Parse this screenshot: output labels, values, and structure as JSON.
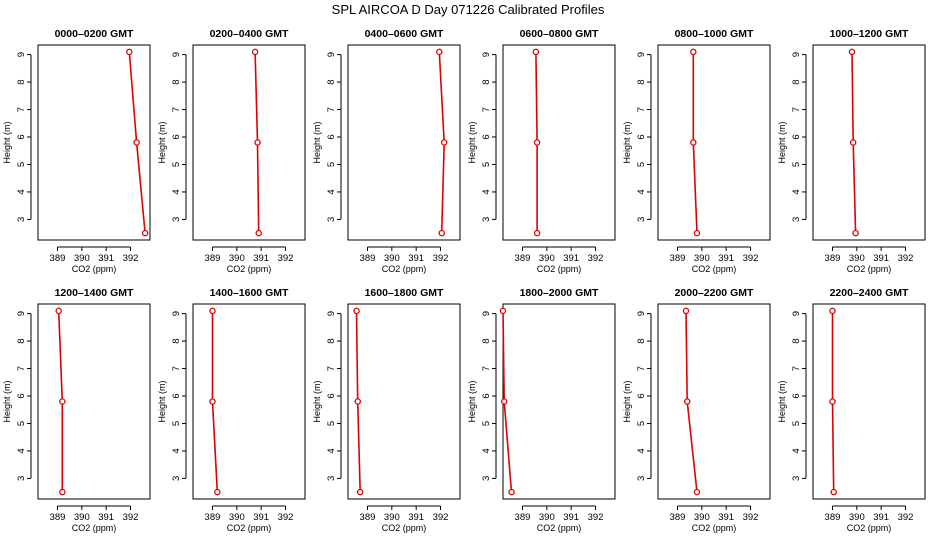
{
  "figure": {
    "title": "SPL AIRCOA D  Day 071226  Calibrated Profiles",
    "colors": {
      "series": "#dd0000",
      "axes": "#000000",
      "background": "#ffffff"
    }
  },
  "chart_data": [
    {
      "type": "line",
      "title": "0000–0200 GMT",
      "xlabel": "CO2 (ppm)",
      "ylabel": "Height (m)",
      "xlim": [
        388.2,
        392.8
      ],
      "ylim": [
        2.25,
        9.35
      ],
      "xticks": [
        389,
        390,
        391,
        392
      ],
      "yticks": [
        3,
        4,
        5,
        6,
        7,
        8,
        9
      ],
      "x": [
        391.95,
        392.25,
        392.6
      ],
      "y": [
        9.1,
        5.8,
        2.5
      ],
      "marker": "open-circle",
      "grid": false
    },
    {
      "type": "line",
      "title": "0200–0400 GMT",
      "xlabel": "CO2 (ppm)",
      "ylabel": "Height (m)",
      "xlim": [
        388.2,
        392.8
      ],
      "ylim": [
        2.25,
        9.35
      ],
      "xticks": [
        389,
        390,
        391,
        392
      ],
      "yticks": [
        3,
        4,
        5,
        6,
        7,
        8,
        9
      ],
      "x": [
        390.75,
        390.85,
        390.9
      ],
      "y": [
        9.1,
        5.8,
        2.5
      ],
      "marker": "open-circle",
      "grid": false
    },
    {
      "type": "line",
      "title": "0400–0600 GMT",
      "xlabel": "CO2 (ppm)",
      "ylabel": "Height (m)",
      "xlim": [
        388.2,
        392.8
      ],
      "ylim": [
        2.25,
        9.35
      ],
      "xticks": [
        389,
        390,
        391,
        392
      ],
      "yticks": [
        3,
        4,
        5,
        6,
        7,
        8,
        9
      ],
      "x": [
        391.95,
        392.15,
        392.05
      ],
      "y": [
        9.1,
        5.8,
        2.5
      ],
      "marker": "open-circle",
      "grid": false
    },
    {
      "type": "line",
      "title": "0600–0800 GMT",
      "xlabel": "CO2 (ppm)",
      "ylabel": "Height (m)",
      "xlim": [
        388.2,
        392.8
      ],
      "ylim": [
        2.25,
        9.35
      ],
      "xticks": [
        389,
        390,
        391,
        392
      ],
      "yticks": [
        3,
        4,
        5,
        6,
        7,
        8,
        9
      ],
      "x": [
        389.55,
        389.6,
        389.6
      ],
      "y": [
        9.1,
        5.8,
        2.5
      ],
      "marker": "open-circle",
      "grid": false
    },
    {
      "type": "line",
      "title": "0800–1000 GMT",
      "xlabel": "CO2 (ppm)",
      "ylabel": "Height (m)",
      "xlim": [
        388.2,
        392.8
      ],
      "ylim": [
        2.25,
        9.35
      ],
      "xticks": [
        389,
        390,
        391,
        392
      ],
      "yticks": [
        3,
        4,
        5,
        6,
        7,
        8,
        9
      ],
      "x": [
        389.65,
        389.65,
        389.8
      ],
      "y": [
        9.1,
        5.8,
        2.5
      ],
      "marker": "open-circle",
      "grid": false
    },
    {
      "type": "line",
      "title": "1000–1200 GMT",
      "xlabel": "CO2 (ppm)",
      "ylabel": "Height (m)",
      "xlim": [
        388.2,
        392.8
      ],
      "ylim": [
        2.25,
        9.35
      ],
      "xticks": [
        389,
        390,
        391,
        392
      ],
      "yticks": [
        3,
        4,
        5,
        6,
        7,
        8,
        9
      ],
      "x": [
        389.8,
        389.85,
        389.95
      ],
      "y": [
        9.1,
        5.8,
        2.5
      ],
      "marker": "open-circle",
      "grid": false
    },
    {
      "type": "line",
      "title": "1200–1400 GMT",
      "xlabel": "CO2 (ppm)",
      "ylabel": "Height (m)",
      "xlim": [
        388.2,
        392.8
      ],
      "ylim": [
        2.25,
        9.35
      ],
      "xticks": [
        389,
        390,
        391,
        392
      ],
      "yticks": [
        3,
        4,
        5,
        6,
        7,
        8,
        9
      ],
      "x": [
        389.05,
        389.2,
        389.2
      ],
      "y": [
        9.1,
        5.8,
        2.5
      ],
      "marker": "open-circle",
      "grid": false
    },
    {
      "type": "line",
      "title": "1400–1600 GMT",
      "xlabel": "CO2 (ppm)",
      "ylabel": "Height (m)",
      "xlim": [
        388.2,
        392.8
      ],
      "ylim": [
        2.25,
        9.35
      ],
      "xticks": [
        389,
        390,
        391,
        392
      ],
      "yticks": [
        3,
        4,
        5,
        6,
        7,
        8,
        9
      ],
      "x": [
        389.0,
        389.0,
        389.2
      ],
      "y": [
        9.1,
        5.8,
        2.5
      ],
      "marker": "open-circle",
      "grid": false
    },
    {
      "type": "line",
      "title": "1600–1800 GMT",
      "xlabel": "CO2 (ppm)",
      "ylabel": "Height (m)",
      "xlim": [
        388.2,
        392.8
      ],
      "ylim": [
        2.25,
        9.35
      ],
      "xticks": [
        389,
        390,
        391,
        392
      ],
      "yticks": [
        3,
        4,
        5,
        6,
        7,
        8,
        9
      ],
      "x": [
        388.55,
        388.6,
        388.7
      ],
      "y": [
        9.1,
        5.8,
        2.5
      ],
      "marker": "open-circle",
      "grid": false
    },
    {
      "type": "line",
      "title": "1800–2000 GMT",
      "xlabel": "CO2 (ppm)",
      "ylabel": "Height (m)",
      "xlim": [
        388.2,
        392.8
      ],
      "ylim": [
        2.25,
        9.35
      ],
      "xticks": [
        389,
        390,
        391,
        392
      ],
      "yticks": [
        3,
        4,
        5,
        6,
        7,
        8,
        9
      ],
      "x": [
        388.2,
        388.25,
        388.55
      ],
      "y": [
        9.1,
        5.8,
        2.5
      ],
      "marker": "open-circle",
      "grid": false
    },
    {
      "type": "line",
      "title": "2000–2200 GMT",
      "xlabel": "CO2 (ppm)",
      "ylabel": "Height (m)",
      "xlim": [
        388.2,
        392.8
      ],
      "ylim": [
        2.25,
        9.35
      ],
      "xticks": [
        389,
        390,
        391,
        392
      ],
      "yticks": [
        3,
        4,
        5,
        6,
        7,
        8,
        9
      ],
      "x": [
        389.35,
        389.4,
        389.8
      ],
      "y": [
        9.1,
        5.8,
        2.5
      ],
      "marker": "open-circle",
      "grid": false
    },
    {
      "type": "line",
      "title": "2200–2400 GMT",
      "xlabel": "CO2 (ppm)",
      "ylabel": "Height (m)",
      "xlim": [
        388.2,
        392.8
      ],
      "ylim": [
        2.25,
        9.35
      ],
      "xticks": [
        389,
        390,
        391,
        392
      ],
      "yticks": [
        3,
        4,
        5,
        6,
        7,
        8,
        9
      ],
      "x": [
        389.0,
        389.0,
        389.05
      ],
      "y": [
        9.1,
        5.8,
        2.5
      ],
      "marker": "open-circle",
      "grid": false
    }
  ]
}
